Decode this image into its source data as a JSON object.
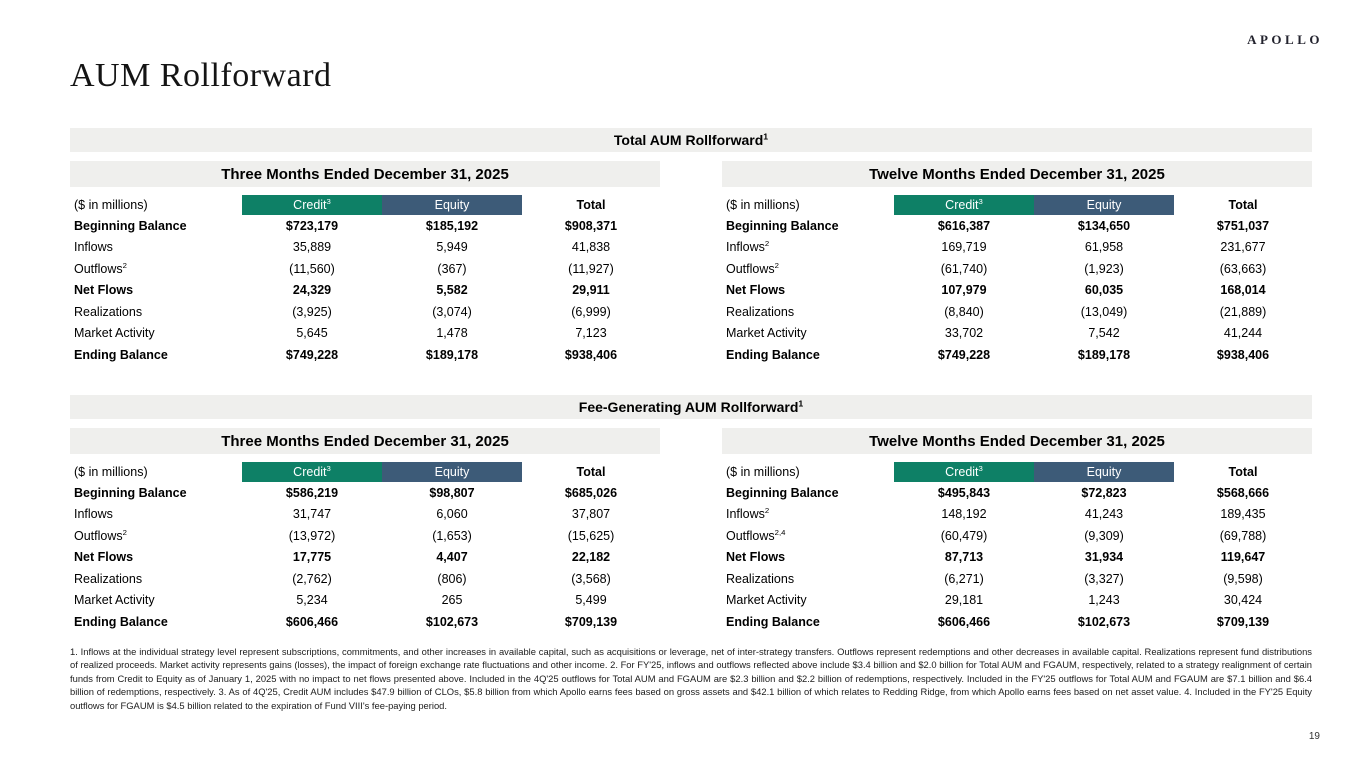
{
  "brand": {
    "logo_text": "APOLLO"
  },
  "page": {
    "title": "AUM Rollforward",
    "page_number": "19"
  },
  "colors": {
    "credit_header_bg": "#0E8066",
    "equity_header_bg": "#3D5B78",
    "bar_bg": "#EFEFED"
  },
  "sections": [
    {
      "title": "Total AUM Rollforward",
      "title_sup": "1",
      "tables": [
        {
          "period_label": "Three Months Ended December 31, 2025",
          "unit_label": "($ in millions)",
          "columns": [
            {
              "label": "Credit",
              "sup": "3"
            },
            {
              "label": "Equity",
              "sup": ""
            },
            {
              "label": "Total",
              "sup": ""
            }
          ],
          "rows": [
            {
              "label": "Beginning Balance",
              "sup": "",
              "bold": true,
              "values": [
                "$723,179",
                "$185,192",
                "$908,371"
              ]
            },
            {
              "label": "Inflows",
              "sup": "",
              "bold": false,
              "values": [
                "35,889",
                "5,949",
                "41,838"
              ]
            },
            {
              "label": "Outflows",
              "sup": "2",
              "bold": false,
              "values": [
                "(11,560)",
                "(367)",
                "(11,927)"
              ]
            },
            {
              "label": "Net Flows",
              "sup": "",
              "bold": true,
              "values": [
                "24,329",
                "5,582",
                "29,911"
              ]
            },
            {
              "label": "Realizations",
              "sup": "",
              "bold": false,
              "values": [
                "(3,925)",
                "(3,074)",
                "(6,999)"
              ]
            },
            {
              "label": "Market Activity",
              "sup": "",
              "bold": false,
              "values": [
                "5,645",
                "1,478",
                "7,123"
              ]
            },
            {
              "label": "Ending Balance",
              "sup": "",
              "bold": true,
              "values": [
                "$749,228",
                "$189,178",
                "$938,406"
              ]
            }
          ]
        },
        {
          "period_label": "Twelve Months Ended December 31, 2025",
          "unit_label": "($ in millions)",
          "columns": [
            {
              "label": "Credit",
              "sup": "3"
            },
            {
              "label": "Equity",
              "sup": ""
            },
            {
              "label": "Total",
              "sup": ""
            }
          ],
          "rows": [
            {
              "label": "Beginning Balance",
              "sup": "",
              "bold": true,
              "values": [
                "$616,387",
                "$134,650",
                "$751,037"
              ]
            },
            {
              "label": "Inflows",
              "sup": "2",
              "bold": false,
              "values": [
                "169,719",
                "61,958",
                "231,677"
              ]
            },
            {
              "label": "Outflows",
              "sup": "2",
              "bold": false,
              "values": [
                "(61,740)",
                "(1,923)",
                "(63,663)"
              ]
            },
            {
              "label": "Net Flows",
              "sup": "",
              "bold": true,
              "values": [
                "107,979",
                "60,035",
                "168,014"
              ]
            },
            {
              "label": "Realizations",
              "sup": "",
              "bold": false,
              "values": [
                "(8,840)",
                "(13,049)",
                "(21,889)"
              ]
            },
            {
              "label": "Market Activity",
              "sup": "",
              "bold": false,
              "values": [
                "33,702",
                "7,542",
                "41,244"
              ]
            },
            {
              "label": "Ending Balance",
              "sup": "",
              "bold": true,
              "values": [
                "$749,228",
                "$189,178",
                "$938,406"
              ]
            }
          ]
        }
      ]
    },
    {
      "title": "Fee-Generating AUM Rollforward",
      "title_sup": "1",
      "tables": [
        {
          "period_label": "Three Months Ended December 31, 2025",
          "unit_label": "($ in millions)",
          "columns": [
            {
              "label": "Credit",
              "sup": "3"
            },
            {
              "label": "Equity",
              "sup": ""
            },
            {
              "label": "Total",
              "sup": ""
            }
          ],
          "rows": [
            {
              "label": "Beginning Balance",
              "sup": "",
              "bold": true,
              "values": [
                "$586,219",
                "$98,807",
                "$685,026"
              ]
            },
            {
              "label": "Inflows",
              "sup": "",
              "bold": false,
              "values": [
                "31,747",
                "6,060",
                "37,807"
              ]
            },
            {
              "label": "Outflows",
              "sup": "2",
              "bold": false,
              "values": [
                "(13,972)",
                "(1,653)",
                "(15,625)"
              ]
            },
            {
              "label": "Net Flows",
              "sup": "",
              "bold": true,
              "values": [
                "17,775",
                "4,407",
                "22,182"
              ]
            },
            {
              "label": "Realizations",
              "sup": "",
              "bold": false,
              "values": [
                "(2,762)",
                "(806)",
                "(3,568)"
              ]
            },
            {
              "label": "Market Activity",
              "sup": "",
              "bold": false,
              "values": [
                "5,234",
                "265",
                "5,499"
              ]
            },
            {
              "label": "Ending Balance",
              "sup": "",
              "bold": true,
              "values": [
                "$606,466",
                "$102,673",
                "$709,139"
              ]
            }
          ]
        },
        {
          "period_label": "Twelve Months Ended December 31, 2025",
          "unit_label": "($ in millions)",
          "columns": [
            {
              "label": "Credit",
              "sup": "3"
            },
            {
              "label": "Equity",
              "sup": ""
            },
            {
              "label": "Total",
              "sup": ""
            }
          ],
          "rows": [
            {
              "label": "Beginning Balance",
              "sup": "",
              "bold": true,
              "values": [
                "$495,843",
                "$72,823",
                "$568,666"
              ]
            },
            {
              "label": "Inflows",
              "sup": "2",
              "bold": false,
              "values": [
                "148,192",
                "41,243",
                "189,435"
              ]
            },
            {
              "label": "Outflows",
              "sup": "2,4",
              "bold": false,
              "values": [
                "(60,479)",
                "(9,309)",
                "(69,788)"
              ]
            },
            {
              "label": "Net Flows",
              "sup": "",
              "bold": true,
              "values": [
                "87,713",
                "31,934",
                "119,647"
              ]
            },
            {
              "label": "Realizations",
              "sup": "",
              "bold": false,
              "values": [
                "(6,271)",
                "(3,327)",
                "(9,598)"
              ]
            },
            {
              "label": "Market Activity",
              "sup": "",
              "bold": false,
              "values": [
                "29,181",
                "1,243",
                "30,424"
              ]
            },
            {
              "label": "Ending Balance",
              "sup": "",
              "bold": true,
              "values": [
                "$606,466",
                "$102,673",
                "$709,139"
              ]
            }
          ]
        }
      ]
    }
  ],
  "footnotes": "1. Inflows at the individual strategy level represent subscriptions, commitments, and other increases in available capital, such as acquisitions or leverage, net of inter-strategy transfers. Outflows represent redemptions and other decreases in available capital. Realizations represent fund distributions of realized proceeds. Market activity represents gains (losses), the impact of foreign exchange rate fluctuations and other income. 2. For FY'25, inflows and outflows reflected above include $3.4 billion and $2.0 billion for Total AUM and FGAUM, respectively, related to a strategy realignment of certain funds from Credit to Equity as of January 1, 2025 with no impact to net flows presented above. Included in the 4Q'25 outflows for Total AUM and FGAUM are $2.3 billion and $2.2 billion of redemptions, respectively. Included in the FY'25 outflows for Total AUM and FGAUM are $7.1 billion and $6.4 billion of redemptions, respectively. 3. As of 4Q'25, Credit AUM includes $47.9 billion of CLOs, $5.8 billion from which Apollo earns fees based on gross assets and $42.1 billion of which relates to Redding Ridge, from which Apollo earns fees based on net asset value. 4. Included in the FY'25 Equity outflows for FGAUM is $4.5 billion related to the expiration of Fund VIII's fee-paying period."
}
